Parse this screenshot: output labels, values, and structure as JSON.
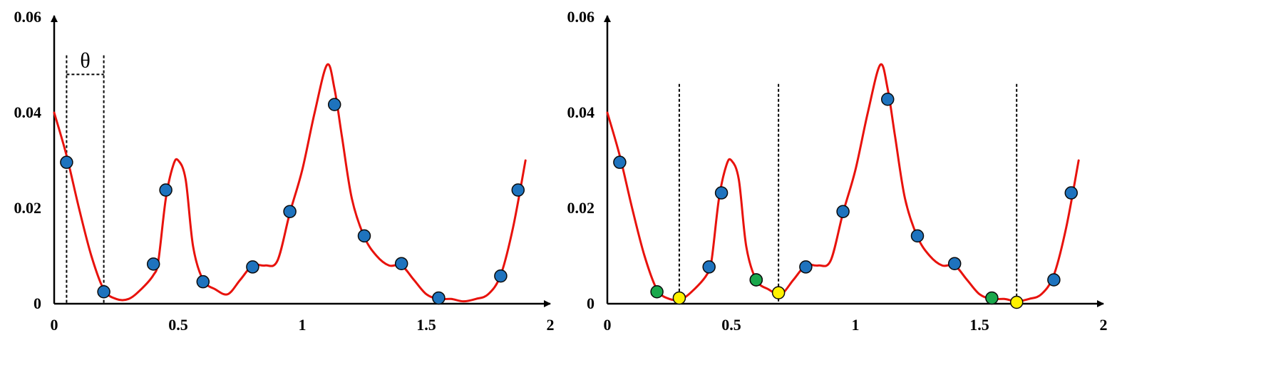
{
  "colors": {
    "curve": "#e8120c",
    "sample_point": "#1e73be",
    "green_point": "#1aa84c",
    "yellow_point": "#fff200",
    "axis": "#000000",
    "marker_stroke": "#0a0a0a"
  },
  "chart_data": [
    {
      "type": "line",
      "title": "",
      "xlabel": "",
      "ylabel": "",
      "xlim": [
        0,
        2
      ],
      "ylim": [
        0,
        0.06
      ],
      "x_ticks": [
        "0",
        "0.5",
        "1",
        "1.5",
        "2"
      ],
      "x_tick_values": [
        0,
        0.5,
        1,
        1.5,
        2
      ],
      "y_ticks": [
        "0",
        "0.02",
        "0.04",
        "0.06"
      ],
      "y_tick_values": [
        0,
        0.02,
        0.04,
        0.06
      ],
      "grid": false,
      "legend": "none",
      "curve": {
        "x": [
          0.0,
          0.05,
          0.1,
          0.15,
          0.2,
          0.25,
          0.3,
          0.35,
          0.4,
          0.42,
          0.45,
          0.48,
          0.5,
          0.53,
          0.56,
          0.6,
          0.65,
          0.7,
          0.75,
          0.8,
          0.85,
          0.9,
          0.95,
          1.0,
          1.05,
          1.1,
          1.13,
          1.16,
          1.2,
          1.25,
          1.3,
          1.35,
          1.4,
          1.45,
          1.5,
          1.55,
          1.6,
          1.65,
          1.7,
          1.75,
          1.8,
          1.85,
          1.9
        ],
        "y": [
          0.04,
          0.031,
          0.02,
          0.01,
          0.003,
          0.001,
          0.001,
          0.003,
          0.006,
          0.009,
          0.022,
          0.029,
          0.03,
          0.026,
          0.012,
          0.005,
          0.003,
          0.002,
          0.005,
          0.008,
          0.008,
          0.009,
          0.019,
          0.028,
          0.04,
          0.05,
          0.045,
          0.035,
          0.022,
          0.014,
          0.01,
          0.008,
          0.008,
          0.005,
          0.002,
          0.001,
          0.001,
          0.0005,
          0.001,
          0.002,
          0.006,
          0.016,
          0.03
        ]
      },
      "series": [
        {
          "type": "scatter",
          "color_key": "sample_point",
          "x": [
            0.05,
            0.2,
            0.4,
            0.45,
            0.6,
            0.8,
            0.95,
            1.13,
            1.25,
            1.4,
            1.55,
            1.8,
            1.87
          ],
          "y": [
            0.0296,
            0.0025,
            0.0083,
            0.0238,
            0.0046,
            0.0077,
            0.0193,
            0.0417,
            0.0142,
            0.0084,
            0.0012,
            0.0058,
            0.0238
          ]
        }
      ],
      "annotations": [
        {
          "type": "interval",
          "x0": 0.05,
          "x1": 0.2,
          "y_top": 0.052,
          "y_bracket": 0.048,
          "label": "θ"
        }
      ]
    },
    {
      "type": "line",
      "title": "",
      "xlabel": "",
      "ylabel": "",
      "xlim": [
        0,
        2
      ],
      "ylim": [
        0,
        0.06
      ],
      "x_ticks": [
        "0",
        "0.5",
        "1",
        "1.5",
        "2"
      ],
      "x_tick_values": [
        0,
        0.5,
        1,
        1.5,
        2
      ],
      "y_ticks": [
        "0",
        "0.02",
        "0.04",
        "0.06"
      ],
      "y_tick_values": [
        0,
        0.02,
        0.04,
        0.06
      ],
      "grid": false,
      "legend": "none",
      "curve": {
        "x": [
          0.0,
          0.05,
          0.1,
          0.15,
          0.2,
          0.25,
          0.3,
          0.35,
          0.4,
          0.42,
          0.45,
          0.48,
          0.5,
          0.53,
          0.56,
          0.6,
          0.65,
          0.7,
          0.75,
          0.8,
          0.85,
          0.9,
          0.95,
          1.0,
          1.05,
          1.1,
          1.13,
          1.16,
          1.2,
          1.25,
          1.3,
          1.35,
          1.4,
          1.45,
          1.5,
          1.55,
          1.6,
          1.65,
          1.7,
          1.75,
          1.8,
          1.85,
          1.9
        ],
        "y": [
          0.04,
          0.031,
          0.02,
          0.01,
          0.003,
          0.001,
          0.001,
          0.003,
          0.006,
          0.009,
          0.022,
          0.029,
          0.03,
          0.026,
          0.012,
          0.005,
          0.003,
          0.002,
          0.005,
          0.008,
          0.008,
          0.009,
          0.019,
          0.028,
          0.04,
          0.05,
          0.045,
          0.035,
          0.022,
          0.014,
          0.01,
          0.008,
          0.008,
          0.005,
          0.002,
          0.001,
          0.001,
          0.0005,
          0.001,
          0.002,
          0.006,
          0.016,
          0.03
        ]
      },
      "series": [
        {
          "type": "scatter",
          "color_key": "sample_point",
          "x": [
            0.05,
            0.41,
            0.46,
            0.6,
            0.8,
            0.95,
            1.13,
            1.25,
            1.4,
            1.8,
            1.87
          ],
          "y": [
            0.0296,
            0.0077,
            0.0232,
            0.005,
            0.0077,
            0.0193,
            0.0428,
            0.0142,
            0.0084,
            0.005,
            0.0232
          ]
        },
        {
          "type": "scatter",
          "color_key": "green_point",
          "x": [
            0.2,
            0.6,
            1.55
          ],
          "y": [
            0.0025,
            0.005,
            0.0012
          ]
        },
        {
          "type": "scatter",
          "color_key": "yellow_point",
          "x": [
            0.29,
            0.69,
            1.65
          ],
          "y": [
            0.0012,
            0.0023,
            0.0003
          ]
        }
      ],
      "vertical_lines": [
        {
          "x": 0.29,
          "y_top": 0.046
        },
        {
          "x": 0.69,
          "y_top": 0.046
        },
        {
          "x": 1.65,
          "y_top": 0.046
        }
      ]
    }
  ]
}
